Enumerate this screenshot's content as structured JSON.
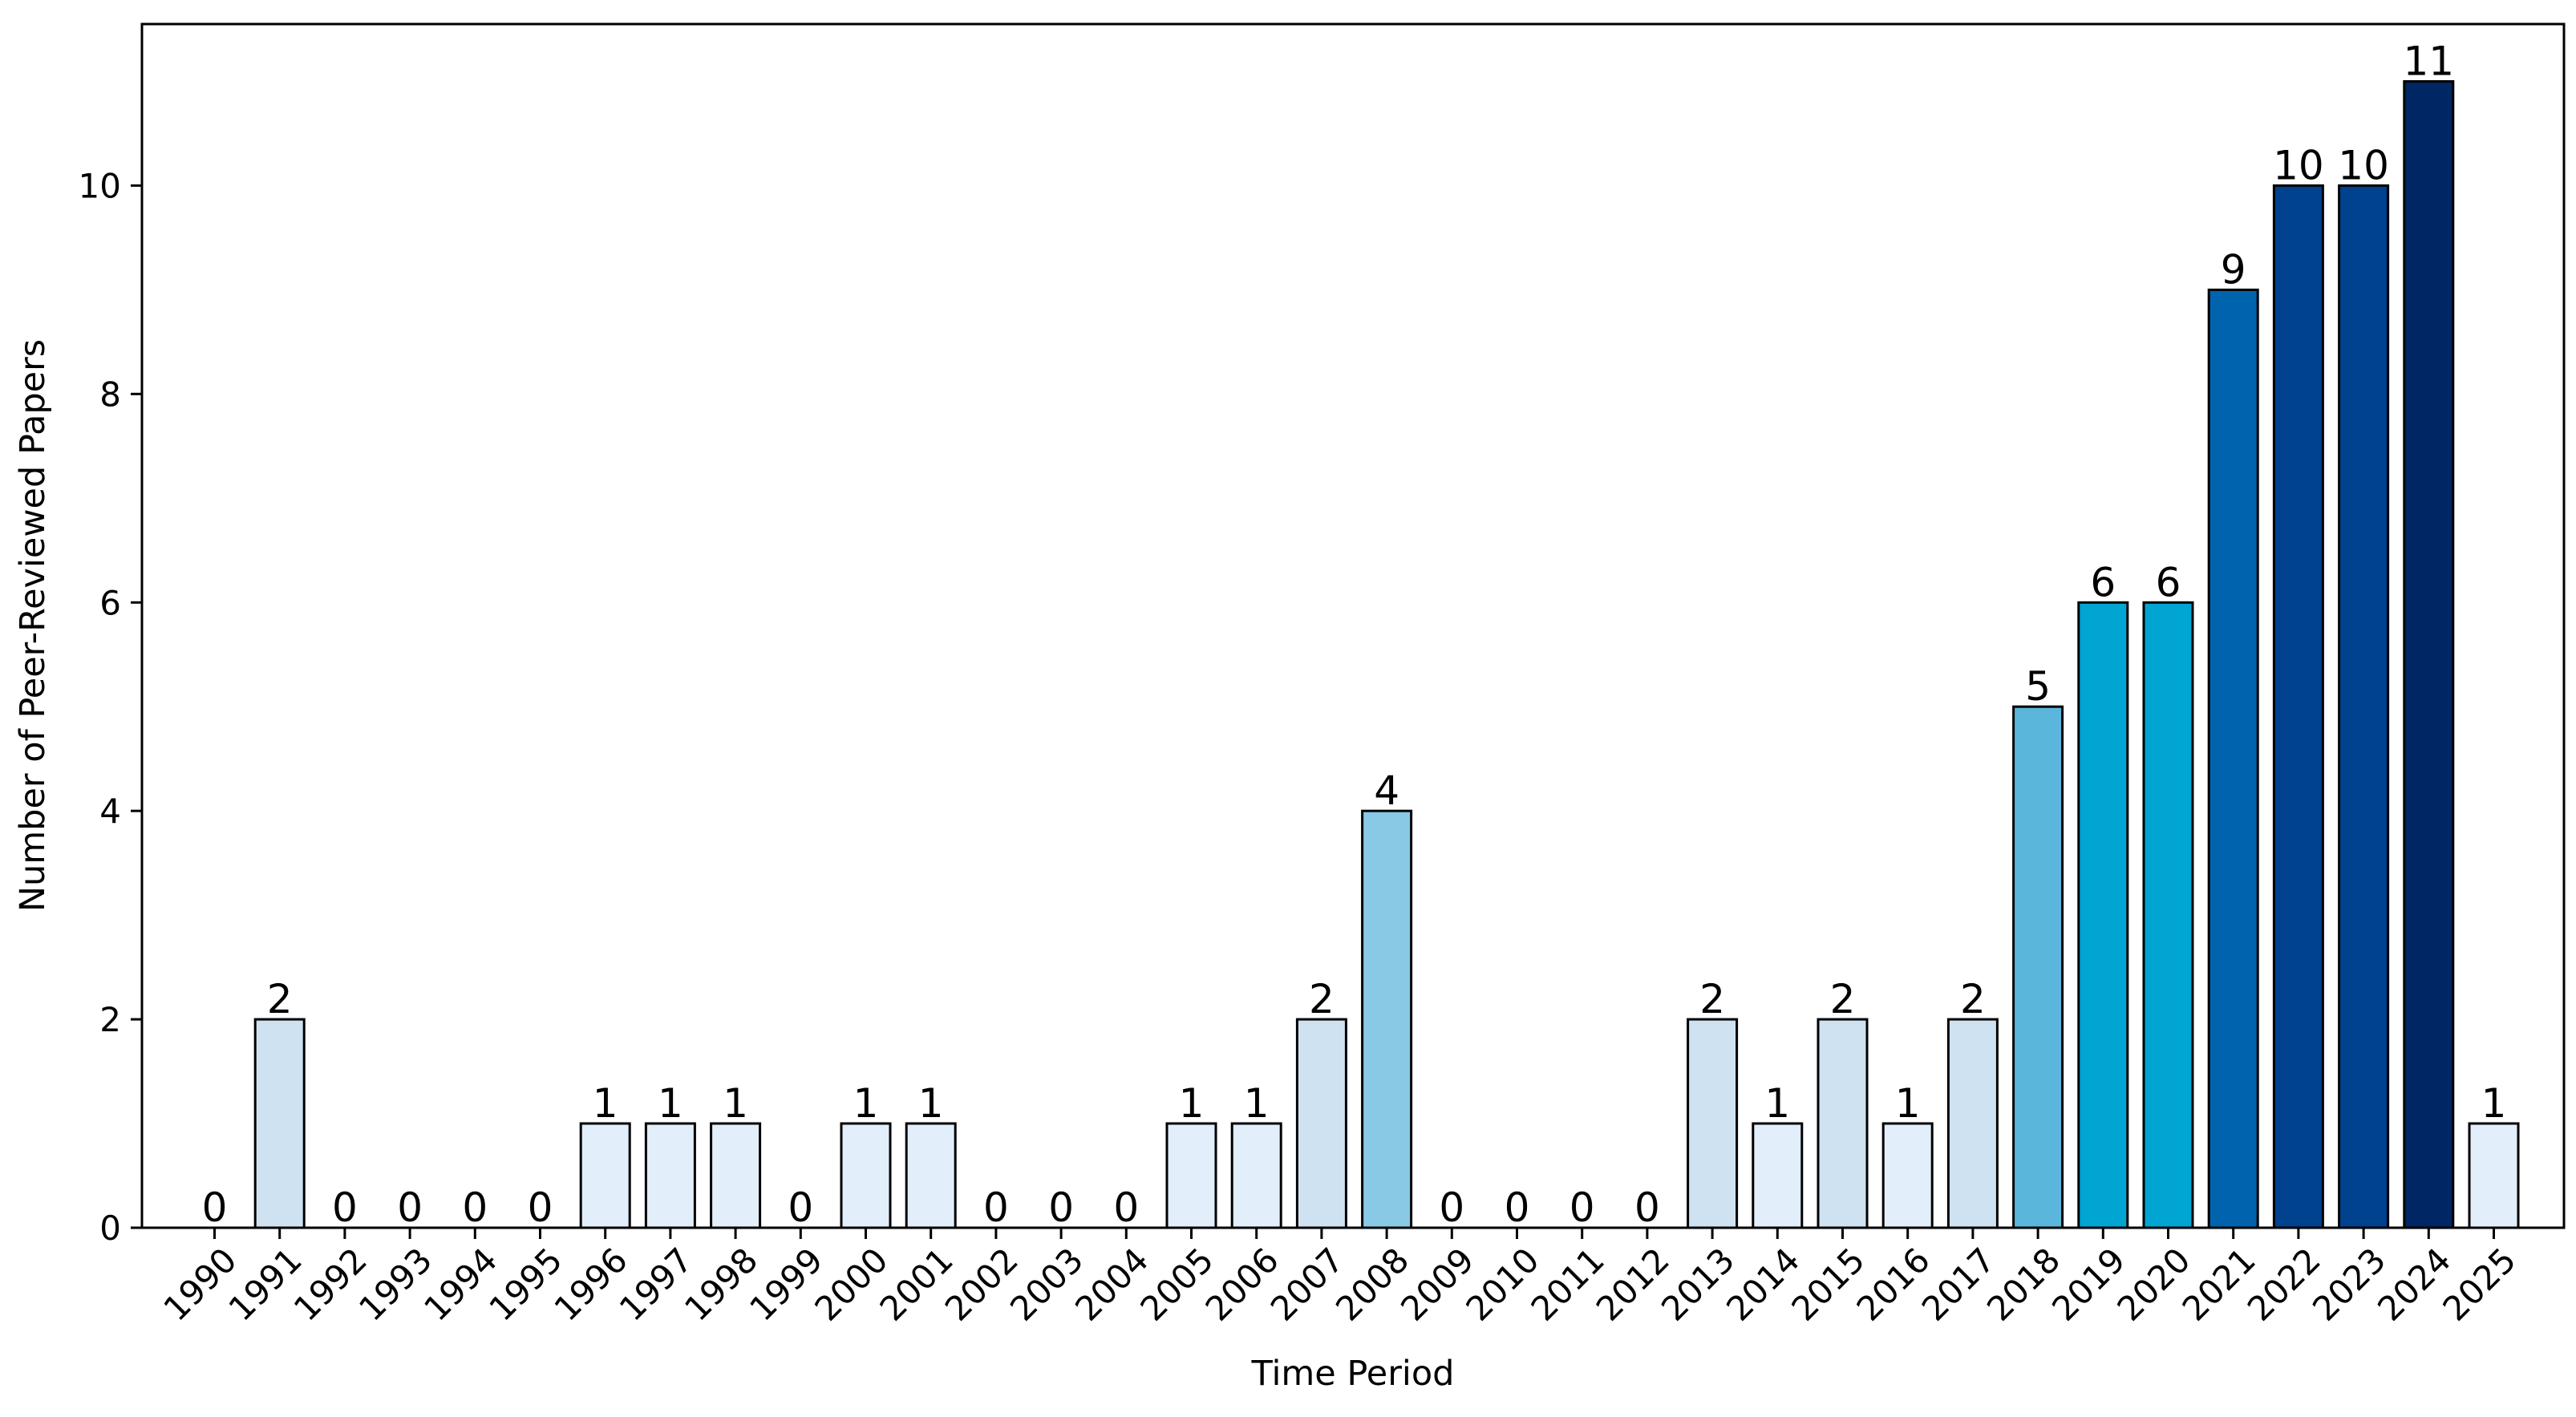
{
  "chart_data": {
    "type": "bar",
    "title": "",
    "xlabel": "Time Period",
    "ylabel": "Number of Peer-Reviewed Papers",
    "categories": [
      "1990",
      "1991",
      "1992",
      "1993",
      "1994",
      "1995",
      "1996",
      "1997",
      "1998",
      "1999",
      "2000",
      "2001",
      "2002",
      "2003",
      "2004",
      "2005",
      "2006",
      "2007",
      "2008",
      "2009",
      "2010",
      "2011",
      "2012",
      "2013",
      "2014",
      "2015",
      "2016",
      "2017",
      "2018",
      "2019",
      "2020",
      "2021",
      "2022",
      "2023",
      "2024",
      "2025"
    ],
    "values": [
      0,
      2,
      0,
      0,
      0,
      0,
      1,
      1,
      1,
      0,
      1,
      1,
      0,
      0,
      0,
      1,
      1,
      2,
      4,
      0,
      0,
      0,
      0,
      2,
      1,
      2,
      1,
      2,
      5,
      6,
      6,
      9,
      10,
      10,
      11,
      1
    ],
    "data_labels": [
      "0",
      "2",
      "0",
      "0",
      "0",
      "0",
      "1",
      "1",
      "1",
      "0",
      "1",
      "1",
      "0",
      "0",
      "0",
      "1",
      "1",
      "2",
      "4",
      "0",
      "0",
      "0",
      "0",
      "2",
      "1",
      "2",
      "1",
      "2",
      "5",
      "6",
      "6",
      "9",
      "10",
      "10",
      "11",
      "1"
    ],
    "ylim": [
      0,
      11.55
    ],
    "yticks": [
      0,
      2,
      4,
      6,
      8,
      10
    ],
    "ytick_labels": [
      "0",
      "2",
      "4",
      "6",
      "8",
      "10"
    ],
    "grid": false,
    "legend": "none",
    "bar_edge_color": "#000000",
    "value_colors": {
      "0": "#e2eef9",
      "1": "#e2eef9",
      "2": "#cfe2f2",
      "4": "#89c9e5",
      "5": "#5bb6db",
      "6": "#00a5d2",
      "9": "#0063ad",
      "10": "#00428d",
      "11": "#002663"
    }
  }
}
